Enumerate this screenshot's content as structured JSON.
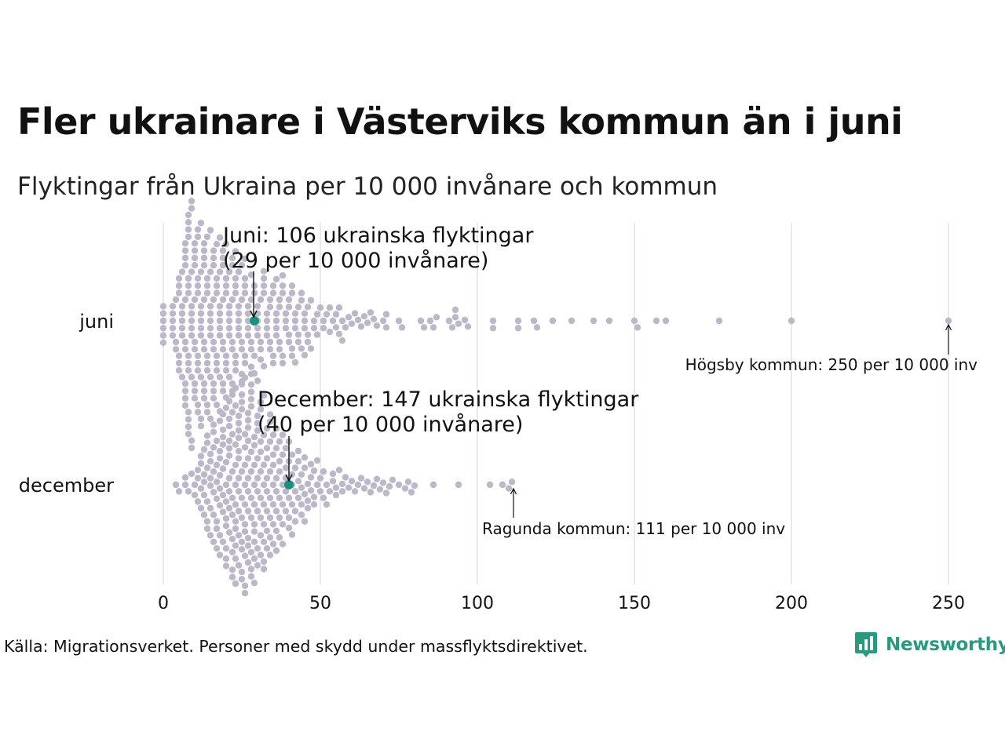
{
  "title": "Fler ukrainare i Västerviks kommun än i juni",
  "subtitle": "Flyktingar från Ukraina per 10 000 invånare och kommun",
  "source": "Källa: Migrationsverket. Personer med skydd under massflyktsdirektivet.",
  "logo": {
    "text": "Newsworthy",
    "icon": "bar-chart-bubble-icon",
    "color": "#2a9a7f"
  },
  "colors": {
    "dot": "#bcb8c9",
    "highlight": "#1a9080",
    "grid": "#d4d4d4"
  },
  "chart_data": {
    "type": "scatter",
    "subtype": "beeswarm",
    "xlim": [
      0,
      250
    ],
    "x_ticks": [
      "0",
      "50",
      "100",
      "150",
      "200",
      "250"
    ],
    "x_tick_values": [
      0,
      50,
      100,
      150,
      200,
      250
    ],
    "grid": true,
    "categories": [
      "juni",
      "december"
    ],
    "series": [
      {
        "category": "juni",
        "highlight": {
          "value": 29,
          "line1": "Juni: 106 ukrainska flyktingar",
          "line2": "(29 per 10 000 invånare)"
        },
        "max_label": {
          "value": 250,
          "text": "Högsby kommun: 250 per 10 000 inv"
        },
        "values": [
          0,
          0,
          0,
          0,
          0,
          0,
          3,
          3,
          3,
          3,
          3,
          4,
          4,
          4,
          5,
          5,
          5,
          5,
          5,
          5,
          6,
          6,
          6,
          6,
          6,
          6,
          6,
          7,
          7,
          7,
          7,
          7,
          7,
          7,
          7,
          7,
          7,
          7,
          8,
          8,
          8,
          8,
          8,
          8,
          8,
          8,
          8,
          8,
          8,
          8,
          8,
          8,
          9,
          9,
          9,
          9,
          9,
          9,
          9,
          9,
          9,
          9,
          9,
          10,
          10,
          10,
          10,
          10,
          10,
          10,
          10,
          10,
          10,
          11,
          11,
          11,
          11,
          11,
          11,
          11,
          11,
          11,
          11,
          12,
          12,
          12,
          12,
          12,
          12,
          12,
          12,
          12,
          12,
          13,
          13,
          13,
          13,
          13,
          13,
          13,
          13,
          13,
          13,
          14,
          14,
          14,
          14,
          14,
          14,
          14,
          14,
          14,
          15,
          15,
          15,
          15,
          15,
          15,
          15,
          15,
          15,
          16,
          16,
          16,
          16,
          16,
          16,
          16,
          16,
          16,
          17,
          17,
          17,
          17,
          17,
          17,
          17,
          17,
          18,
          18,
          18,
          18,
          18,
          18,
          18,
          18,
          18,
          19,
          19,
          19,
          19,
          19,
          19,
          19,
          19,
          20,
          20,
          20,
          20,
          20,
          20,
          20,
          20,
          21,
          21,
          21,
          21,
          21,
          21,
          21,
          22,
          22,
          22,
          22,
          22,
          22,
          22,
          23,
          23,
          23,
          23,
          23,
          23,
          23,
          24,
          24,
          24,
          24,
          24,
          24,
          25,
          25,
          25,
          25,
          25,
          25,
          26,
          26,
          26,
          26,
          26,
          26,
          27,
          27,
          27,
          27,
          27,
          28,
          28,
          28,
          28,
          28,
          29,
          29,
          29,
          29,
          30,
          30,
          30,
          30,
          30,
          31,
          31,
          31,
          31,
          32,
          32,
          32,
          32,
          32,
          33,
          33,
          33,
          33,
          34,
          34,
          34,
          34,
          35,
          35,
          35,
          35,
          36,
          36,
          36,
          36,
          36,
          37,
          37,
          37,
          37,
          38,
          38,
          38,
          38,
          38,
          39,
          39,
          39,
          40,
          40,
          40,
          40,
          41,
          41,
          41,
          41,
          42,
          42,
          42,
          42,
          43,
          43,
          43,
          44,
          44,
          44,
          45,
          45,
          45,
          45,
          46,
          46,
          46,
          47,
          47,
          48,
          48,
          49,
          49,
          50,
          51,
          51,
          52,
          53,
          53,
          54,
          55,
          55,
          56,
          56,
          57,
          57,
          58,
          59,
          60,
          61,
          62,
          63,
          64,
          65,
          66,
          67,
          68,
          70,
          71,
          71,
          75,
          76,
          82,
          83,
          85,
          86,
          87,
          91,
          92,
          93,
          93,
          94,
          96,
          97,
          105,
          105,
          113,
          113,
          118,
          119,
          124,
          130,
          137,
          142,
          150,
          151,
          157,
          160,
          177,
          200,
          250
        ]
      },
      {
        "category": "december",
        "highlight": {
          "value": 40,
          "line1": "December: 147 ukrainska flyktingar",
          "line2": "(40 per 10 000 invånare)"
        },
        "max_label": {
          "value": 111,
          "text": "Ragunda kommun: 111 per 10 000 inv"
        },
        "values": [
          4,
          5,
          7,
          7,
          8,
          9,
          10,
          10,
          11,
          11,
          11,
          12,
          12,
          12,
          12,
          13,
          13,
          13,
          13,
          13,
          14,
          14,
          14,
          14,
          14,
          14,
          15,
          15,
          15,
          15,
          15,
          15,
          16,
          16,
          16,
          16,
          16,
          16,
          16,
          17,
          17,
          17,
          17,
          17,
          17,
          17,
          18,
          18,
          18,
          18,
          18,
          18,
          18,
          18,
          19,
          19,
          19,
          19,
          19,
          19,
          19,
          19,
          20,
          20,
          20,
          20,
          20,
          20,
          20,
          20,
          20,
          21,
          21,
          21,
          21,
          21,
          21,
          21,
          21,
          21,
          21,
          22,
          22,
          22,
          22,
          22,
          22,
          22,
          22,
          22,
          22,
          23,
          23,
          23,
          23,
          23,
          23,
          23,
          23,
          23,
          23,
          23,
          24,
          24,
          24,
          24,
          24,
          24,
          24,
          24,
          24,
          24,
          24,
          25,
          25,
          25,
          25,
          25,
          25,
          25,
          25,
          25,
          25,
          25,
          26,
          26,
          26,
          26,
          26,
          26,
          26,
          26,
          26,
          26,
          26,
          27,
          27,
          27,
          27,
          27,
          27,
          27,
          27,
          27,
          27,
          27,
          28,
          28,
          28,
          28,
          28,
          28,
          28,
          28,
          28,
          28,
          28,
          28,
          29,
          29,
          29,
          29,
          29,
          29,
          29,
          29,
          29,
          29,
          30,
          30,
          30,
          30,
          30,
          30,
          30,
          30,
          30,
          30,
          31,
          31,
          31,
          31,
          31,
          31,
          31,
          31,
          31,
          32,
          32,
          32,
          32,
          32,
          32,
          32,
          32,
          32,
          33,
          33,
          33,
          33,
          33,
          33,
          33,
          33,
          34,
          34,
          34,
          34,
          34,
          34,
          34,
          34,
          35,
          35,
          35,
          35,
          35,
          35,
          35,
          36,
          36,
          36,
          36,
          36,
          36,
          36,
          37,
          37,
          37,
          37,
          37,
          37,
          38,
          38,
          38,
          38,
          38,
          38,
          39,
          39,
          39,
          39,
          39,
          40,
          40,
          40,
          40,
          40,
          41,
          41,
          41,
          41,
          41,
          42,
          42,
          42,
          42,
          43,
          43,
          43,
          43,
          44,
          44,
          44,
          44,
          45,
          45,
          45,
          45,
          46,
          46,
          46,
          47,
          47,
          47,
          48,
          48,
          48,
          49,
          49,
          50,
          50,
          51,
          51,
          52,
          52,
          53,
          54,
          54,
          55,
          55,
          56,
          57,
          57,
          58,
          59,
          60,
          61,
          62,
          63,
          64,
          65,
          66,
          67,
          68,
          69,
          70,
          71,
          72,
          73,
          75,
          77,
          78,
          79,
          80,
          86,
          94,
          104,
          108,
          110,
          111
        ]
      }
    ]
  }
}
